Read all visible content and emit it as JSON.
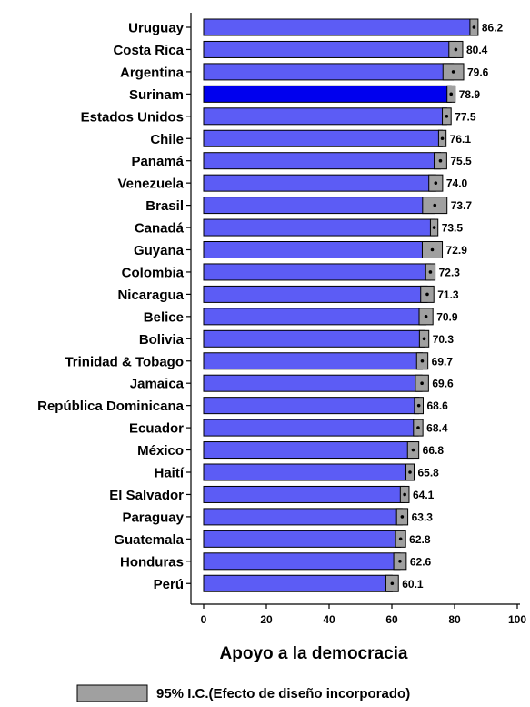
{
  "chart_data": {
    "type": "bar",
    "orientation": "horizontal",
    "xlabel": "Apoyo a la democracia",
    "xlim": [
      0,
      100
    ],
    "xticks": [
      0,
      20,
      40,
      60,
      80,
      100
    ],
    "grid": false,
    "legend": {
      "label": "95% I.C.(Efecto de diseño incorporado)",
      "position": "bottom",
      "color": "#a0a0a0"
    },
    "colors": {
      "bar": "#5c5cf5",
      "highlight": "#0000ee",
      "ci": "#a0a0a0"
    },
    "highlight": "Surinam",
    "categories": [
      "Uruguay",
      "Costa Rica",
      "Argentina",
      "Surinam",
      "Estados Unidos",
      "Chile",
      "Panamá",
      "Venezuela",
      "Brasil",
      "Canadá",
      "Guyana",
      "Colombia",
      "Nicaragua",
      "Belice",
      "Bolivia",
      "Trinidad & Tobago",
      "Jamaica",
      "República Dominicana",
      "Ecuador",
      "México",
      "Haití",
      "El Salvador",
      "Paraguay",
      "Guatemala",
      "Honduras",
      "Perú"
    ],
    "values": [
      86.2,
      80.4,
      79.6,
      78.9,
      77.5,
      76.1,
      75.5,
      74.0,
      73.7,
      73.5,
      72.9,
      72.3,
      71.3,
      70.9,
      70.3,
      69.7,
      69.6,
      68.6,
      68.4,
      66.8,
      65.8,
      64.1,
      63.3,
      62.8,
      62.6,
      60.1
    ],
    "value_labels": [
      "86.2",
      "80.4",
      "79.6",
      "78.9",
      "77.5",
      "76.1",
      "75.5",
      "74.0",
      "73.7",
      "73.5",
      "72.9",
      "72.3",
      "71.3",
      "70.9",
      "70.3",
      "69.7",
      "69.6",
      "68.6",
      "68.4",
      "66.8",
      "65.8",
      "64.1",
      "63.3",
      "62.8",
      "62.6",
      "60.1"
    ],
    "ci_low": [
      84.9,
      78.2,
      76.3,
      77.6,
      76.1,
      74.9,
      73.5,
      71.8,
      69.8,
      72.3,
      69.7,
      70.8,
      69.2,
      68.7,
      68.8,
      67.9,
      67.5,
      67.2,
      66.9,
      65.0,
      64.5,
      62.7,
      61.5,
      61.2,
      60.6,
      58.1
    ],
    "ci_high": [
      87.5,
      82.6,
      82.9,
      80.2,
      78.9,
      77.3,
      77.5,
      76.2,
      77.6,
      74.7,
      76.1,
      73.8,
      73.4,
      73.1,
      71.8,
      71.5,
      71.7,
      70.0,
      69.9,
      68.6,
      67.1,
      65.5,
      65.1,
      64.4,
      64.6,
      62.1
    ]
  }
}
